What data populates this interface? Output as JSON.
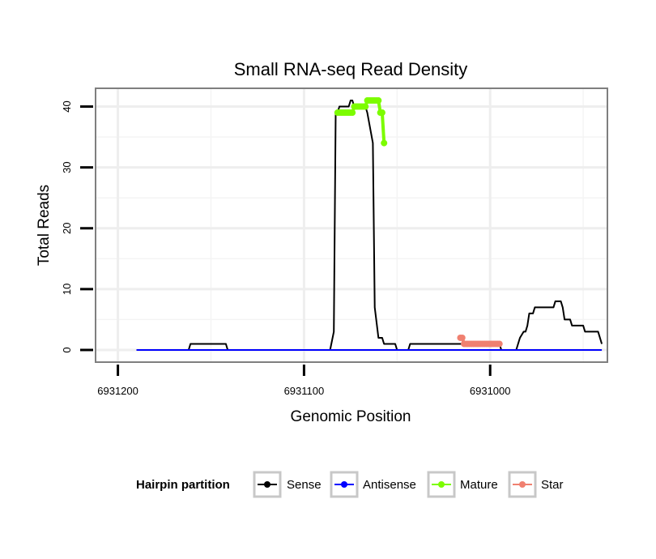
{
  "chart_data": {
    "type": "line",
    "title": "Small RNA-seq Read Density",
    "xlabel": "Genomic Position",
    "ylabel": "Total Reads",
    "xlim": [
      6931212,
      6930937
    ],
    "x_reversed": true,
    "ylim": [
      -2,
      43
    ],
    "x_ticks": [
      6931200,
      6931100,
      6931000
    ],
    "x_tick_labels": [
      "6931200",
      "6931100",
      "6931000"
    ],
    "y_ticks": [
      0,
      10,
      20,
      30,
      40
    ],
    "y_tick_labels": [
      "0",
      "10",
      "20",
      "30",
      "40"
    ],
    "grid": true,
    "legend_position": "bottom",
    "legend_title": "Hairpin partition",
    "series": [
      {
        "name": "Sense",
        "color": "#000000",
        "markers": false,
        "x": [
          6931190,
          6931162,
          6931161,
          6931142,
          6931141,
          6931086,
          6931084,
          6931083,
          6931082,
          6931081,
          6931076,
          6931075,
          6931074,
          6931073,
          6931067,
          6931066,
          6931063,
          6931062,
          6931060,
          6931059,
          6931058,
          6931057,
          6931055,
          6931054,
          6931051,
          6931050,
          6931044,
          6931043,
          6931039,
          6931038,
          6931017,
          6931016,
          6930995,
          6930994,
          6930987,
          6930986,
          6930985,
          6930984,
          6930982,
          6930981,
          6930980,
          6930979,
          6930977,
          6930976,
          6930966,
          6930965,
          6930962,
          6930961,
          6930960,
          6930959,
          6930957,
          6930956,
          6930950,
          6930949,
          6930942,
          6930940
        ],
        "values": [
          0,
          0,
          1,
          1,
          0,
          0,
          3,
          39,
          39,
          40,
          40,
          41,
          41,
          40,
          40,
          39,
          34,
          7,
          2,
          2,
          2,
          1,
          1,
          1,
          1,
          0,
          0,
          1,
          1,
          1,
          1,
          1,
          1,
          0,
          0,
          0,
          1,
          2,
          3,
          3,
          4,
          6,
          6,
          7,
          7,
          8,
          8,
          7,
          5,
          5,
          5,
          4,
          4,
          3,
          3,
          1
        ]
      },
      {
        "name": "Antisense",
        "color": "#0000ff",
        "markers": false,
        "x": [
          6931190,
          6930940
        ],
        "values": [
          0,
          0
        ]
      },
      {
        "name": "Mature",
        "color": "#7cfc00",
        "markers": true,
        "x": [
          6931082,
          6931081,
          6931080,
          6931079,
          6931078,
          6931077,
          6931076,
          6931075,
          6931074,
          6931073,
          6931072,
          6931071,
          6931070,
          6931069,
          6931068,
          6931067,
          6931066,
          6931065,
          6931064,
          6931063,
          6931062,
          6931061,
          6931060,
          6931059,
          6931058,
          6931057
        ],
        "values": [
          39,
          39,
          39,
          39,
          39,
          39,
          39,
          39,
          39,
          40,
          40,
          40,
          40,
          40,
          40,
          40,
          41,
          41,
          41,
          41,
          41,
          41,
          41,
          39,
          39,
          34
        ]
      },
      {
        "name": "Star",
        "color": "#f08070",
        "markers": true,
        "x": [
          6931016,
          6931015,
          6931014,
          6931013,
          6931012,
          6931011,
          6931010,
          6931009,
          6931008,
          6931007,
          6931006,
          6931005,
          6931004,
          6931003,
          6931002,
          6931001,
          6931000,
          6930999,
          6930998,
          6930997,
          6930996,
          6930995
        ],
        "values": [
          2,
          2,
          1,
          1,
          1,
          1,
          1,
          1,
          1,
          1,
          1,
          1,
          1,
          1,
          1,
          1,
          1,
          1,
          1,
          1,
          1,
          1
        ]
      }
    ]
  }
}
